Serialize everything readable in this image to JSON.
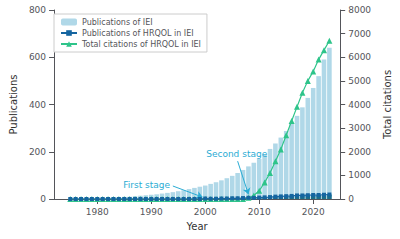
{
  "chart_data": {
    "type": "bar",
    "x": [
      1975,
      1976,
      1977,
      1978,
      1979,
      1980,
      1981,
      1982,
      1983,
      1984,
      1985,
      1986,
      1987,
      1988,
      1989,
      1990,
      1991,
      1992,
      1993,
      1994,
      1995,
      1996,
      1997,
      1998,
      1999,
      2000,
      2001,
      2002,
      2003,
      2004,
      2005,
      2006,
      2007,
      2008,
      2009,
      2010,
      2011,
      2012,
      2013,
      2014,
      2015,
      2016,
      2017,
      2018,
      2019,
      2020,
      2021,
      2022,
      2023
    ],
    "series": [
      {
        "name": "Publications of IEI",
        "type": "bar",
        "color": "#b0d8e8",
        "values": [
          3,
          3,
          3,
          4,
          4,
          5,
          5,
          6,
          7,
          8,
          9,
          10,
          12,
          14,
          16,
          18,
          20,
          23,
          26,
          29,
          33,
          37,
          42,
          47,
          52,
          57,
          64,
          71,
          79,
          88,
          98,
          110,
          123,
          138,
          153,
          170,
          190,
          212,
          235,
          260,
          288,
          318,
          352,
          388,
          428,
          470,
          520,
          590,
          640
        ]
      },
      {
        "name": "Publications of HRQOL in IEI",
        "type": "bar",
        "color": "#1a6e8a",
        "values": [
          0,
          0,
          0,
          0,
          0,
          0,
          0,
          0,
          0,
          0,
          0,
          0,
          0,
          0,
          0,
          0,
          0,
          0,
          0,
          0,
          0,
          0,
          0,
          0,
          0,
          2,
          1,
          1,
          2,
          2,
          3,
          3,
          4,
          5,
          5,
          6,
          7,
          8,
          10,
          11,
          12,
          13,
          15,
          15,
          16,
          17,
          17,
          18,
          19
        ]
      },
      {
        "name": "Total citations of HRQOL in IEI",
        "type": "line",
        "color": "#2ec48a",
        "marker": "triangle",
        "axis": "y2",
        "values": [
          0,
          0,
          0,
          0,
          0,
          0,
          0,
          0,
          0,
          0,
          0,
          0,
          0,
          0,
          0,
          0,
          0,
          0,
          0,
          0,
          0,
          0,
          0,
          0,
          0,
          0,
          0,
          0,
          0,
          0,
          0,
          0,
          0,
          50,
          150,
          350,
          700,
          1100,
          1600,
          2100,
          2700,
          3300,
          3900,
          4500,
          5000,
          5400,
          5900,
          6300,
          6700
        ]
      },
      {
        "name": "Publications of HRQOL in IEI",
        "type": "line",
        "color": "#1565a0",
        "marker": "square",
        "values": [
          0,
          0,
          0,
          0,
          0,
          0,
          0,
          0,
          0,
          0,
          0,
          0,
          0,
          0,
          0,
          0,
          0,
          0,
          0,
          0,
          0,
          0,
          0,
          0,
          0,
          2,
          1,
          1,
          2,
          2,
          3,
          3,
          4,
          5,
          5,
          6,
          7,
          8,
          10,
          11,
          12,
          13,
          15,
          15,
          16,
          17,
          17,
          18,
          19
        ]
      }
    ],
    "xlabel": "Year",
    "ylabel": "Publications",
    "y2label": "Total citations",
    "xlim": [
      1972,
      2025
    ],
    "xticks": [
      1980,
      1990,
      2000,
      2010,
      2020
    ],
    "ylim": [
      0,
      800
    ],
    "yticks": [
      0,
      200,
      400,
      600,
      800
    ],
    "y2lim": [
      0,
      8000
    ],
    "y2ticks": [
      0,
      1000,
      2000,
      3000,
      4000,
      5000,
      6000,
      7000,
      8000
    ],
    "annotations": [
      {
        "text": "First stage",
        "xy": [
          1999.5,
          8
        ],
        "xytext": [
          1994,
          55
        ],
        "color": "#2aacd4"
      },
      {
        "text": "Second stage",
        "xy": [
          2008,
          20
        ],
        "xytext": [
          2006,
          160
        ],
        "color": "#2aacd4"
      }
    ],
    "legend": "upper left",
    "grid": false
  }
}
